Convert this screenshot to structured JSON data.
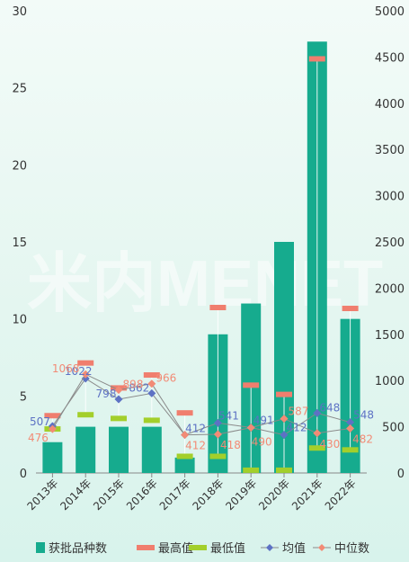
{
  "watermark": "米内MENET",
  "chart_data": {
    "type": "bar",
    "categories": [
      "2013年",
      "2014年",
      "2015年",
      "2016年",
      "2017年",
      "2018年",
      "2019年",
      "2020年",
      "2021年",
      "2022年"
    ],
    "y_left": {
      "min": 0,
      "max": 30,
      "ticks": [
        0,
        5,
        10,
        15,
        20,
        25,
        30
      ]
    },
    "y_right": {
      "min": 0,
      "max": 5000,
      "ticks": [
        0,
        500,
        1000,
        1500,
        2000,
        2500,
        3000,
        3500,
        4000,
        4500,
        5000
      ]
    },
    "series": [
      {
        "name": "获批品种数",
        "kind": "bar",
        "axis": "left",
        "color": "#16ab8e",
        "values": [
          2,
          3,
          3,
          3,
          1,
          9,
          11,
          15,
          28,
          10
        ]
      },
      {
        "name": "最高值",
        "kind": "marker",
        "axis": "right",
        "color": "#f07e6e",
        "values": [
          620,
          1190,
          920,
          1060,
          650,
          1790,
          950,
          850,
          4480,
          1780
        ]
      },
      {
        "name": "最低值",
        "kind": "marker",
        "axis": "right",
        "color": "#a3cf2b",
        "values": [
          476,
          630,
          590,
          570,
          180,
          180,
          30,
          30,
          270,
          250
        ]
      },
      {
        "name": "均值",
        "kind": "line",
        "axis": "right",
        "color": "#5d72c4",
        "values": [
          507,
          1022,
          798,
          862,
          412,
          541,
          491,
          412,
          648,
          548
        ],
        "labels": [
          "507",
          "1022",
          "798",
          "862",
          "412",
          "541",
          "491",
          "412",
          "648",
          "548"
        ]
      },
      {
        "name": "中位数",
        "kind": "line",
        "axis": "right",
        "color": "#f28b76",
        "values": [
          476,
          1068,
          898,
          966,
          412,
          418,
          490,
          587,
          430,
          482
        ],
        "labels": [
          "476",
          "1068",
          "898",
          "966",
          "412",
          "418",
          "490",
          "587",
          "430",
          "482"
        ]
      }
    ]
  }
}
